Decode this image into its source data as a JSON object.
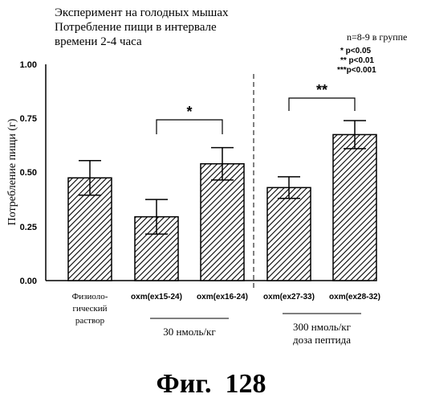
{
  "chart_data": {
    "type": "bar",
    "title_lines": [
      "Эксперимент на голодных мышах",
      "Потребление пищи в интервале",
      "времени 2-4 часа"
    ],
    "ylabel": "Потребление пищи (г)",
    "ylim": [
      0,
      1.0
    ],
    "yticks": [
      "0.00",
      "0.25",
      "0.50",
      "0.75",
      "1.00"
    ],
    "ytick_values": [
      0,
      0.25,
      0.5,
      0.75,
      1.0
    ],
    "grid": false,
    "categories": [
      [
        "Физиоло-",
        "гический",
        "раствор"
      ],
      [
        "oxm(ex15-24)"
      ],
      [
        "oxm(ex16-24)"
      ],
      [
        "oxm(ex27-33)"
      ],
      [
        "oxm(ex28-32)"
      ]
    ],
    "values": [
      0.475,
      0.295,
      0.54,
      0.43,
      0.675
    ],
    "errors": [
      0.08,
      0.08,
      0.075,
      0.05,
      0.065
    ],
    "pattern": "diagonal-hatch",
    "significance": [
      {
        "from": 1,
        "to": 2,
        "label": "*"
      },
      {
        "from": 3,
        "to": 4,
        "label": "**"
      }
    ],
    "group_labels": [
      {
        "bars": [
          1,
          2
        ],
        "lines": [
          "30 нмоль/кг"
        ]
      },
      {
        "bars": [
          3,
          4
        ],
        "lines": [
          "300 нмоль/кг",
          "доза пептида"
        ]
      }
    ],
    "legend": {
      "n_text": "n=8-9 в группе",
      "items": [
        "* p<0.05",
        "** p<0.01",
        "***p<0.001"
      ]
    },
    "figure_label": "Фиг.  128"
  }
}
